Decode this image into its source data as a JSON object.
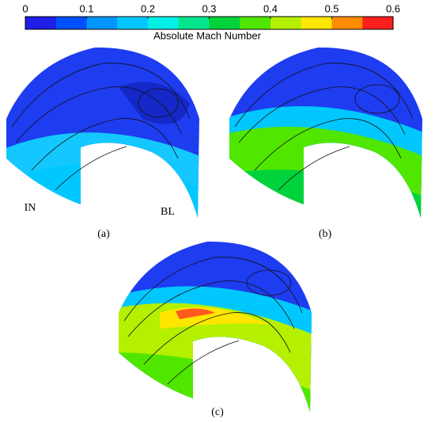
{
  "colorbar": {
    "label": "Absolute Mach Number",
    "ticks": [
      0,
      0.1,
      0.2,
      0.3,
      0.4,
      0.5,
      0.6
    ],
    "colors": [
      "#1e1ee6",
      "#0050ff",
      "#0096ff",
      "#00c8ff",
      "#00f0e6",
      "#00e68c",
      "#00d23c",
      "#50e600",
      "#b4f000",
      "#ffe600",
      "#ff8c00",
      "#ff1e1e"
    ]
  },
  "panels": [
    {
      "caption": "(a)",
      "labels": [
        "IN",
        "BL"
      ]
    },
    {
      "caption": "(b)"
    },
    {
      "caption": "(c)"
    }
  ]
}
